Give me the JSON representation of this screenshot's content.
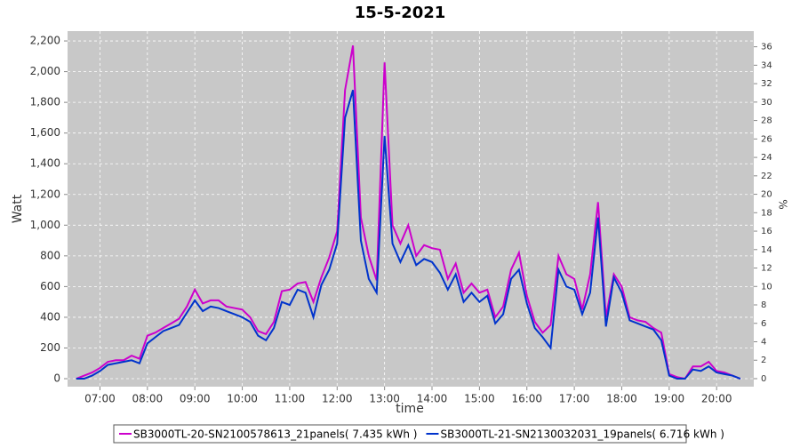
{
  "chart_data": {
    "type": "line",
    "title": "15-5-2021",
    "xlabel": "time",
    "ylabel": "Watt",
    "y2label": "%",
    "x": [
      "06:30",
      "06:40",
      "06:50",
      "07:00",
      "07:10",
      "07:20",
      "07:30",
      "07:40",
      "07:50",
      "08:00",
      "08:10",
      "08:20",
      "08:30",
      "08:40",
      "08:50",
      "09:00",
      "09:10",
      "09:20",
      "09:30",
      "09:40",
      "09:50",
      "10:00",
      "10:10",
      "10:20",
      "10:30",
      "10:40",
      "10:50",
      "11:00",
      "11:10",
      "11:20",
      "11:30",
      "11:40",
      "11:50",
      "12:00",
      "12:10",
      "12:20",
      "12:30",
      "12:40",
      "12:50",
      "13:00",
      "13:10",
      "13:20",
      "13:30",
      "13:40",
      "13:50",
      "14:00",
      "14:10",
      "14:20",
      "14:30",
      "14:40",
      "14:50",
      "15:00",
      "15:10",
      "15:20",
      "15:30",
      "15:40",
      "15:50",
      "16:00",
      "16:10",
      "16:20",
      "16:30",
      "16:40",
      "16:50",
      "17:00",
      "17:10",
      "17:20",
      "17:30",
      "17:40",
      "17:50",
      "18:00",
      "18:10",
      "18:20",
      "18:30",
      "18:40",
      "18:50",
      "19:00",
      "19:10",
      "19:20",
      "19:30",
      "19:40",
      "19:50",
      "20:00",
      "20:10",
      "20:20",
      "20:30"
    ],
    "series": [
      {
        "name": "SB3000TL-20-SN2100578613_21panels( 7.435 kWh )",
        "color": "#cc00cc",
        "values": [
          0,
          20,
          40,
          70,
          110,
          120,
          120,
          150,
          130,
          280,
          300,
          330,
          360,
          390,
          470,
          580,
          490,
          510,
          510,
          470,
          460,
          450,
          400,
          310,
          290,
          370,
          570,
          580,
          620,
          630,
          500,
          660,
          790,
          960,
          1880,
          2170,
          1050,
          800,
          640,
          2060,
          1000,
          880,
          1000,
          800,
          870,
          850,
          840,
          650,
          750,
          560,
          620,
          560,
          580,
          400,
          470,
          710,
          820,
          540,
          370,
          300,
          350,
          800,
          680,
          650,
          450,
          680,
          1150,
          400,
          680,
          600,
          400,
          380,
          370,
          330,
          300,
          30,
          10,
          0,
          80,
          80,
          110,
          50,
          40,
          20,
          0
        ]
      },
      {
        "name": "SB3000TL-21-SN2130032031_19panels( 6.716 kWh )",
        "color": "#0033cc",
        "values": [
          0,
          0,
          20,
          50,
          90,
          100,
          110,
          120,
          100,
          230,
          270,
          310,
          330,
          350,
          430,
          510,
          440,
          470,
          460,
          440,
          420,
          400,
          370,
          280,
          250,
          330,
          500,
          480,
          580,
          560,
          400,
          610,
          710,
          880,
          1700,
          1880,
          900,
          650,
          560,
          1580,
          880,
          760,
          870,
          740,
          780,
          760,
          690,
          580,
          680,
          500,
          560,
          500,
          540,
          360,
          420,
          650,
          710,
          490,
          330,
          270,
          200,
          710,
          600,
          580,
          420,
          560,
          1050,
          340,
          660,
          560,
          380,
          360,
          340,
          320,
          250,
          20,
          0,
          0,
          60,
          50,
          80,
          40,
          30,
          20,
          0
        ]
      }
    ],
    "xlim": [
      "06:19",
      "20:47"
    ],
    "xticks": [
      "07:00",
      "08:00",
      "09:00",
      "10:00",
      "11:00",
      "12:00",
      "13:00",
      "14:00",
      "15:00",
      "16:00",
      "17:00",
      "18:00",
      "19:00",
      "20:00"
    ],
    "ylim": [
      -52,
      2264
    ],
    "yticks": [
      0,
      200,
      400,
      600,
      800,
      {
        "value": 1000,
        "label": "1,000"
      },
      {
        "value": 1200,
        "label": "1,200"
      },
      {
        "value": 1400,
        "label": "1,400"
      },
      {
        "value": 1600,
        "label": "1,600"
      },
      {
        "value": 1800,
        "label": "1,800"
      },
      {
        "value": 2000,
        "label": "2,000"
      },
      {
        "value": 2200,
        "label": "2,200"
      }
    ],
    "y2lim": [
      -0.87,
      37.7
    ],
    "y2ticks": [
      0,
      2,
      4,
      6,
      8,
      10,
      12,
      14,
      16,
      18,
      20,
      22,
      24,
      26,
      28,
      30,
      32,
      34,
      36
    ],
    "grid": true
  }
}
